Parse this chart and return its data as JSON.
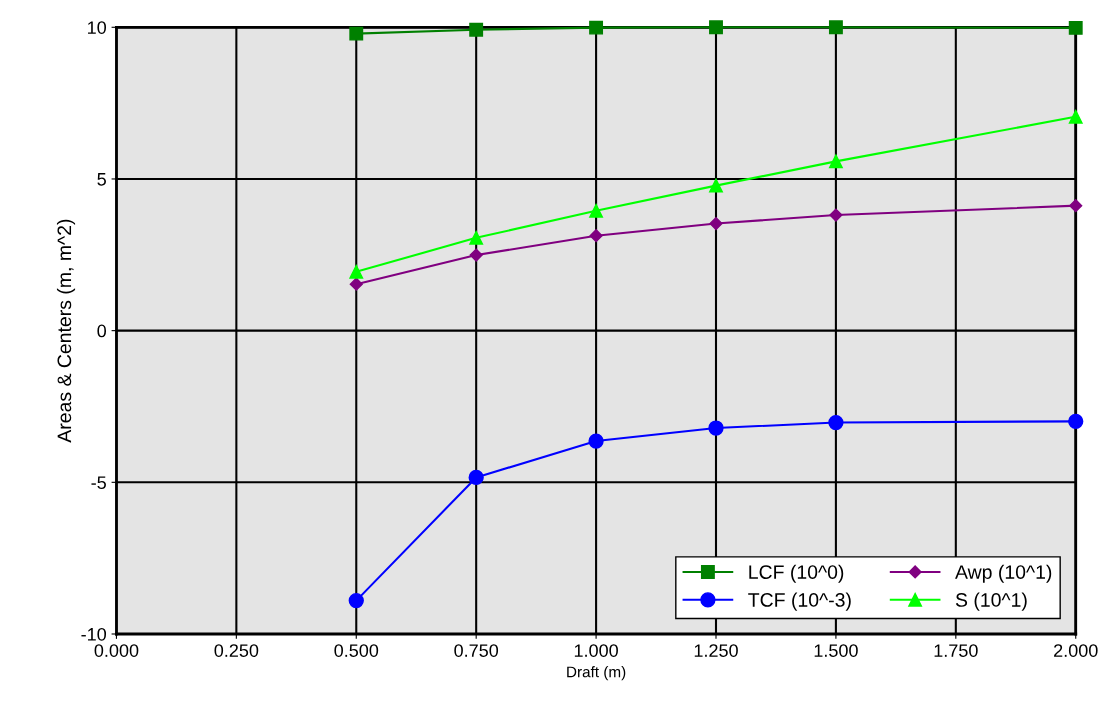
{
  "chart_data": {
    "type": "line",
    "xlabel": "Draft (m)",
    "ylabel": "Areas & Centers (m, m^2)",
    "x": [
      0.5,
      0.75,
      1.0,
      1.25,
      1.5,
      2.0
    ],
    "series": [
      {
        "name": "LCF (10^0)",
        "color": "#008000",
        "marker": "square",
        "values": [
          9.79,
          9.92,
          9.99,
          10.0,
          10.0,
          9.98
        ]
      },
      {
        "name": "TCF (10^-3)",
        "color": "#0000ff",
        "marker": "circle",
        "values": [
          -8.9,
          -4.84,
          -3.64,
          -3.21,
          -3.03,
          -2.99
        ]
      },
      {
        "name": "Awp (10^1)",
        "color": "#800080",
        "marker": "diamond",
        "values": [
          1.53,
          2.49,
          3.13,
          3.53,
          3.81,
          4.12
        ]
      },
      {
        "name": "S (10^1)",
        "color": "#00ff00",
        "marker": "triangle",
        "values": [
          1.94,
          3.06,
          3.95,
          4.78,
          5.58,
          7.05
        ]
      }
    ],
    "xlim": [
      0,
      2
    ],
    "ylim": [
      -10,
      10
    ],
    "xticks": [
      {
        "value": 0,
        "label": "0.000"
      },
      {
        "value": 0.25,
        "label": "0.250"
      },
      {
        "value": 0.5,
        "label": "0.500"
      },
      {
        "value": 0.75,
        "label": "0.750"
      },
      {
        "value": 1.0,
        "label": "1.000"
      },
      {
        "value": 1.25,
        "label": "1.250"
      },
      {
        "value": 1.5,
        "label": "1.500"
      },
      {
        "value": 1.75,
        "label": "1.750"
      },
      {
        "value": 2.0,
        "label": "2.000"
      }
    ],
    "yticks": [
      -10,
      -5,
      0,
      5,
      10
    ],
    "grid": true,
    "legend": "bottom right",
    "line_style": "solid"
  }
}
